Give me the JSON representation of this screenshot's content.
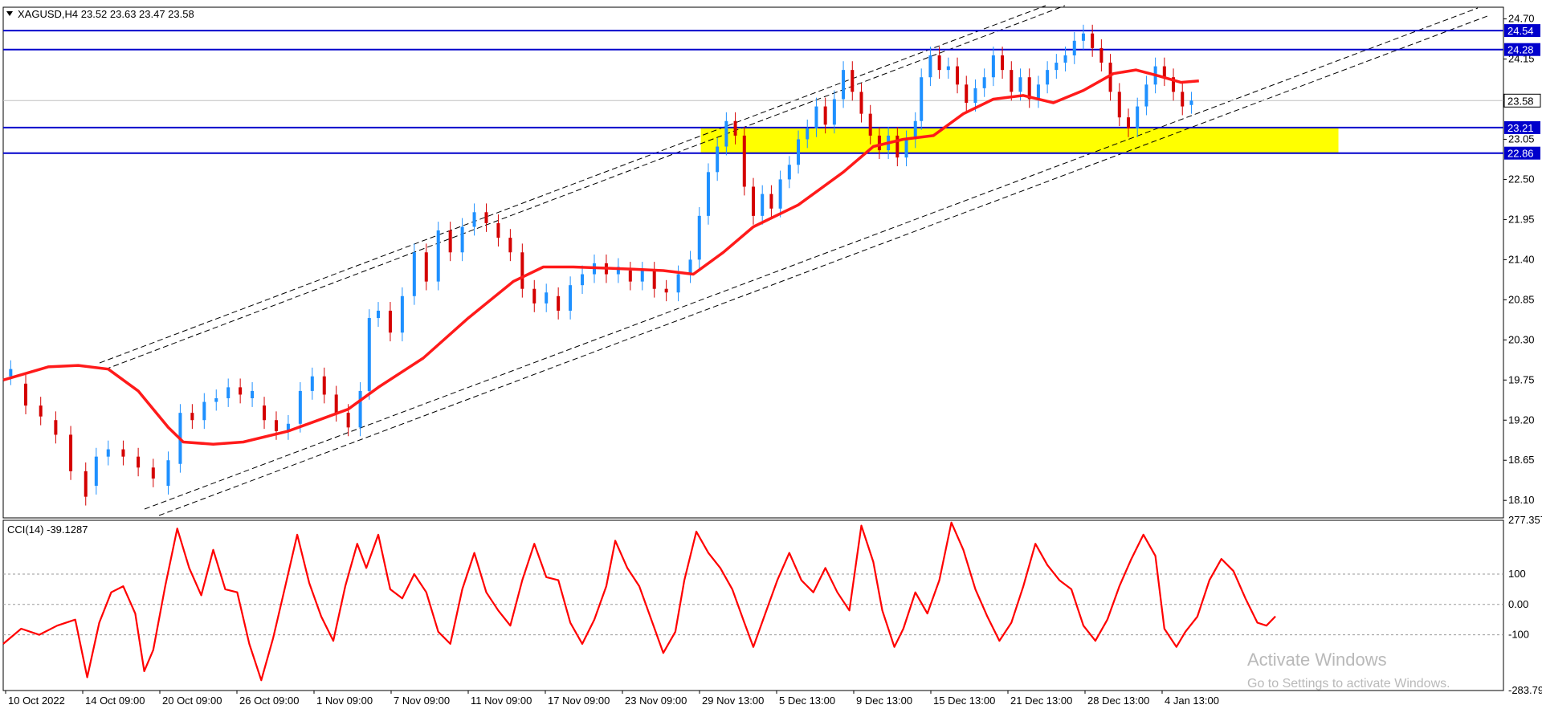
{
  "chart_data": [
    {
      "type": "candlestick",
      "symbol_header": "XAGUSD,H4  23.52 23.63 23.47 23.58",
      "ohlc_last": {
        "open": 23.52,
        "high": 23.63,
        "low": 23.47,
        "close": 23.58
      },
      "ylim": [
        17.86,
        24.86
      ],
      "y_ticks": [
        "24.70",
        "24.15",
        "23.05",
        "22.50",
        "21.95",
        "21.40",
        "20.85",
        "20.30",
        "19.75",
        "19.20",
        "18.65",
        "18.10"
      ],
      "price_labels": {
        "current": "23.58",
        "lines": [
          "24.54",
          "24.28",
          "23.21",
          "22.86"
        ]
      },
      "x_tick_labels": [
        "10 Oct 2022",
        "14 Oct 09:00",
        "20 Oct 09:00",
        "26 Oct 09:00",
        "1 Nov 09:00",
        "7 Nov 09:00",
        "11 Nov 09:00",
        "17 Nov 09:00",
        "23 Nov 09:00",
        "29 Nov 13:00",
        "5 Dec 13:00",
        "9 Dec 13:00",
        "15 Dec 13:00",
        "21 Dec 13:00",
        "28 Dec 13:00",
        "4 Jan 13:00"
      ],
      "horizontal_lines": [
        24.54,
        24.28,
        23.21,
        22.86
      ],
      "zone": {
        "from": 22.86,
        "to": 23.21,
        "color": "#ffff00",
        "x_start": 0.465,
        "x_end": 0.89
      },
      "colors": {
        "bull": "#1e90ff",
        "bear": "#d40000",
        "ma": "#ff1a1a",
        "hline": "#0000cc",
        "label_bg": "#0000cc"
      },
      "ma_points": [
        [
          0.0,
          19.75
        ],
        [
          0.03,
          19.93
        ],
        [
          0.05,
          19.95
        ],
        [
          0.07,
          19.9
        ],
        [
          0.09,
          19.6
        ],
        [
          0.11,
          19.1
        ],
        [
          0.12,
          18.9
        ],
        [
          0.14,
          18.87
        ],
        [
          0.16,
          18.9
        ],
        [
          0.19,
          19.05
        ],
        [
          0.21,
          19.2
        ],
        [
          0.23,
          19.35
        ],
        [
          0.25,
          19.65
        ],
        [
          0.28,
          20.05
        ],
        [
          0.31,
          20.6
        ],
        [
          0.34,
          21.1
        ],
        [
          0.36,
          21.3
        ],
        [
          0.38,
          21.3
        ],
        [
          0.42,
          21.27
        ],
        [
          0.44,
          21.25
        ],
        [
          0.46,
          21.2
        ],
        [
          0.48,
          21.5
        ],
        [
          0.5,
          21.85
        ],
        [
          0.53,
          22.15
        ],
        [
          0.56,
          22.6
        ],
        [
          0.58,
          22.95
        ],
        [
          0.6,
          23.05
        ],
        [
          0.62,
          23.1
        ],
        [
          0.64,
          23.4
        ],
        [
          0.66,
          23.6
        ],
        [
          0.68,
          23.65
        ],
        [
          0.7,
          23.55
        ],
        [
          0.72,
          23.72
        ],
        [
          0.74,
          23.95
        ],
        [
          0.755,
          24.0
        ],
        [
          0.77,
          23.92
        ],
        [
          0.785,
          23.83
        ],
        [
          0.797,
          23.85
        ]
      ],
      "candles": [
        [
          0.005,
          19.8,
          19.9
        ],
        [
          0.015,
          19.7,
          19.4
        ],
        [
          0.025,
          19.4,
          19.25
        ],
        [
          0.035,
          19.2,
          19.0
        ],
        [
          0.045,
          19.0,
          18.5
        ],
        [
          0.055,
          18.5,
          18.15
        ],
        [
          0.062,
          18.3,
          18.7
        ],
        [
          0.07,
          18.7,
          18.8
        ],
        [
          0.08,
          18.8,
          18.7
        ],
        [
          0.09,
          18.7,
          18.55
        ],
        [
          0.1,
          18.55,
          18.4
        ],
        [
          0.11,
          18.3,
          18.65
        ],
        [
          0.118,
          18.6,
          19.3
        ],
        [
          0.126,
          19.3,
          19.2
        ],
        [
          0.134,
          19.2,
          19.45
        ],
        [
          0.142,
          19.45,
          19.5
        ],
        [
          0.15,
          19.5,
          19.65
        ],
        [
          0.158,
          19.65,
          19.55
        ],
        [
          0.166,
          19.5,
          19.6
        ],
        [
          0.174,
          19.4,
          19.2
        ],
        [
          0.182,
          19.2,
          19.05
        ],
        [
          0.19,
          19.05,
          19.15
        ],
        [
          0.198,
          19.15,
          19.6
        ],
        [
          0.206,
          19.6,
          19.8
        ],
        [
          0.214,
          19.8,
          19.55
        ],
        [
          0.222,
          19.55,
          19.3
        ],
        [
          0.23,
          19.3,
          19.1
        ],
        [
          0.238,
          19.1,
          19.6
        ],
        [
          0.244,
          19.6,
          20.6
        ],
        [
          0.25,
          20.6,
          20.7
        ],
        [
          0.258,
          20.7,
          20.4
        ],
        [
          0.266,
          20.4,
          20.9
        ],
        [
          0.274,
          20.9,
          21.5
        ],
        [
          0.282,
          21.5,
          21.1
        ],
        [
          0.29,
          21.1,
          21.8
        ],
        [
          0.298,
          21.8,
          21.5
        ],
        [
          0.306,
          21.5,
          21.85
        ],
        [
          0.314,
          21.85,
          22.05
        ],
        [
          0.322,
          22.05,
          21.9
        ],
        [
          0.33,
          21.9,
          21.7
        ],
        [
          0.338,
          21.7,
          21.5
        ],
        [
          0.346,
          21.5,
          21.0
        ],
        [
          0.354,
          21.0,
          20.8
        ],
        [
          0.362,
          20.8,
          20.95
        ],
        [
          0.37,
          20.9,
          20.7
        ],
        [
          0.378,
          20.7,
          21.05
        ],
        [
          0.386,
          21.05,
          21.2
        ],
        [
          0.394,
          21.2,
          21.35
        ],
        [
          0.402,
          21.35,
          21.2
        ],
        [
          0.41,
          21.2,
          21.3
        ],
        [
          0.418,
          21.25,
          21.1
        ],
        [
          0.426,
          21.1,
          21.25
        ],
        [
          0.434,
          21.25,
          21.0
        ],
        [
          0.442,
          21.0,
          20.95
        ],
        [
          0.45,
          20.95,
          21.2
        ],
        [
          0.458,
          21.2,
          21.4
        ],
        [
          0.464,
          21.4,
          22.0
        ],
        [
          0.47,
          22.0,
          22.6
        ],
        [
          0.476,
          22.6,
          22.95
        ],
        [
          0.482,
          22.95,
          23.3
        ],
        [
          0.488,
          23.3,
          23.1
        ],
        [
          0.494,
          23.1,
          22.4
        ],
        [
          0.5,
          22.4,
          22.0
        ],
        [
          0.506,
          22.0,
          22.3
        ],
        [
          0.512,
          22.3,
          22.1
        ],
        [
          0.518,
          22.1,
          22.5
        ],
        [
          0.524,
          22.5,
          22.7
        ],
        [
          0.53,
          22.7,
          23.05
        ],
        [
          0.536,
          23.05,
          23.2
        ],
        [
          0.542,
          23.2,
          23.5
        ],
        [
          0.548,
          23.5,
          23.25
        ],
        [
          0.554,
          23.25,
          23.6
        ],
        [
          0.56,
          23.6,
          24.0
        ],
        [
          0.566,
          24.0,
          23.7
        ],
        [
          0.572,
          23.7,
          23.4
        ],
        [
          0.578,
          23.4,
          23.1
        ],
        [
          0.584,
          23.1,
          22.9
        ],
        [
          0.59,
          22.9,
          23.1
        ],
        [
          0.596,
          23.1,
          22.8
        ],
        [
          0.602,
          22.8,
          23.05
        ],
        [
          0.608,
          23.05,
          23.3
        ],
        [
          0.612,
          23.3,
          23.9
        ],
        [
          0.618,
          23.9,
          24.2
        ],
        [
          0.624,
          24.2,
          24.0
        ],
        [
          0.63,
          24.0,
          24.05
        ],
        [
          0.636,
          24.05,
          23.8
        ],
        [
          0.642,
          23.8,
          23.55
        ],
        [
          0.648,
          23.55,
          23.75
        ],
        [
          0.654,
          23.75,
          23.9
        ],
        [
          0.66,
          23.9,
          24.2
        ],
        [
          0.666,
          24.2,
          24.0
        ],
        [
          0.672,
          24.0,
          23.7
        ],
        [
          0.678,
          23.7,
          23.9
        ],
        [
          0.684,
          23.9,
          23.6
        ],
        [
          0.69,
          23.6,
          23.8
        ],
        [
          0.696,
          23.8,
          24.0
        ],
        [
          0.702,
          24.0,
          24.1
        ],
        [
          0.708,
          24.1,
          24.2
        ],
        [
          0.714,
          24.2,
          24.4
        ],
        [
          0.72,
          24.4,
          24.5
        ],
        [
          0.726,
          24.5,
          24.3
        ],
        [
          0.732,
          24.3,
          24.1
        ],
        [
          0.738,
          24.1,
          23.7
        ],
        [
          0.744,
          23.7,
          23.35
        ],
        [
          0.75,
          23.35,
          23.2
        ],
        [
          0.756,
          23.2,
          23.5
        ],
        [
          0.762,
          23.5,
          23.8
        ],
        [
          0.768,
          23.8,
          24.05
        ],
        [
          0.774,
          24.05,
          23.9
        ],
        [
          0.78,
          23.9,
          23.7
        ],
        [
          0.786,
          23.7,
          23.5
        ],
        [
          0.792,
          23.52,
          23.58
        ]
      ]
    },
    {
      "type": "line",
      "indicator_label": "CCI(14) -39.1287",
      "ylim": [
        -283.796,
        277.357
      ],
      "y_tick_labels": [
        "277.357",
        "100",
        "0.00",
        "-100",
        "-283.796"
      ],
      "levels": [
        100,
        0,
        -100
      ],
      "series": [
        {
          "color": "#ff0000",
          "points": [
            [
              0.0,
              -130
            ],
            [
              0.012,
              -80
            ],
            [
              0.024,
              -100
            ],
            [
              0.036,
              -70
            ],
            [
              0.048,
              -50
            ],
            [
              0.056,
              -240
            ],
            [
              0.064,
              -60
            ],
            [
              0.072,
              40
            ],
            [
              0.08,
              60
            ],
            [
              0.088,
              -30
            ],
            [
              0.094,
              -220
            ],
            [
              0.1,
              -150
            ],
            [
              0.108,
              60
            ],
            [
              0.116,
              250
            ],
            [
              0.124,
              120
            ],
            [
              0.132,
              30
            ],
            [
              0.14,
              180
            ],
            [
              0.148,
              50
            ],
            [
              0.156,
              40
            ],
            [
              0.164,
              -130
            ],
            [
              0.172,
              -250
            ],
            [
              0.18,
              -110
            ],
            [
              0.188,
              60
            ],
            [
              0.196,
              230
            ],
            [
              0.204,
              70
            ],
            [
              0.212,
              -40
            ],
            [
              0.22,
              -120
            ],
            [
              0.228,
              60
            ],
            [
              0.236,
              200
            ],
            [
              0.242,
              120
            ],
            [
              0.25,
              230
            ],
            [
              0.258,
              50
            ],
            [
              0.266,
              20
            ],
            [
              0.274,
              100
            ],
            [
              0.282,
              40
            ],
            [
              0.29,
              -90
            ],
            [
              0.298,
              -130
            ],
            [
              0.306,
              50
            ],
            [
              0.314,
              170
            ],
            [
              0.322,
              40
            ],
            [
              0.33,
              -20
            ],
            [
              0.338,
              -70
            ],
            [
              0.346,
              80
            ],
            [
              0.354,
              200
            ],
            [
              0.362,
              90
            ],
            [
              0.37,
              80
            ],
            [
              0.378,
              -60
            ],
            [
              0.386,
              -130
            ],
            [
              0.394,
              -50
            ],
            [
              0.402,
              60
            ],
            [
              0.408,
              210
            ],
            [
              0.416,
              120
            ],
            [
              0.424,
              60
            ],
            [
              0.432,
              -50
            ],
            [
              0.44,
              -160
            ],
            [
              0.448,
              -90
            ],
            [
              0.454,
              80
            ],
            [
              0.462,
              240
            ],
            [
              0.47,
              170
            ],
            [
              0.478,
              120
            ],
            [
              0.486,
              50
            ],
            [
              0.494,
              -60
            ],
            [
              0.5,
              -140
            ],
            [
              0.508,
              -30
            ],
            [
              0.516,
              80
            ],
            [
              0.524,
              170
            ],
            [
              0.532,
              80
            ],
            [
              0.54,
              40
            ],
            [
              0.548,
              120
            ],
            [
              0.556,
              40
            ],
            [
              0.564,
              -20
            ],
            [
              0.572,
              260
            ],
            [
              0.58,
              140
            ],
            [
              0.586,
              -20
            ],
            [
              0.594,
              -140
            ],
            [
              0.6,
              -80
            ],
            [
              0.608,
              40
            ],
            [
              0.616,
              -30
            ],
            [
              0.624,
              80
            ],
            [
              0.632,
              270
            ],
            [
              0.64,
              180
            ],
            [
              0.648,
              50
            ],
            [
              0.656,
              -40
            ],
            [
              0.664,
              -120
            ],
            [
              0.672,
              -60
            ],
            [
              0.68,
              60
            ],
            [
              0.688,
              200
            ],
            [
              0.696,
              130
            ],
            [
              0.704,
              80
            ],
            [
              0.712,
              50
            ],
            [
              0.72,
              -70
            ],
            [
              0.728,
              -120
            ],
            [
              0.736,
              -50
            ],
            [
              0.744,
              60
            ],
            [
              0.752,
              150
            ],
            [
              0.76,
              230
            ],
            [
              0.768,
              160
            ],
            [
              0.774,
              -80
            ],
            [
              0.782,
              -140
            ],
            [
              0.788,
              -90
            ],
            [
              0.796,
              -40
            ],
            [
              0.804,
              80
            ],
            [
              0.812,
              150
            ],
            [
              0.82,
              110
            ],
            [
              0.828,
              20
            ],
            [
              0.836,
              -60
            ],
            [
              0.842,
              -70
            ],
            [
              0.848,
              -39.13
            ]
          ]
        }
      ]
    }
  ],
  "watermark": {
    "line1": "Activate Windows",
    "line2": "Go to Settings to activate Windows."
  }
}
